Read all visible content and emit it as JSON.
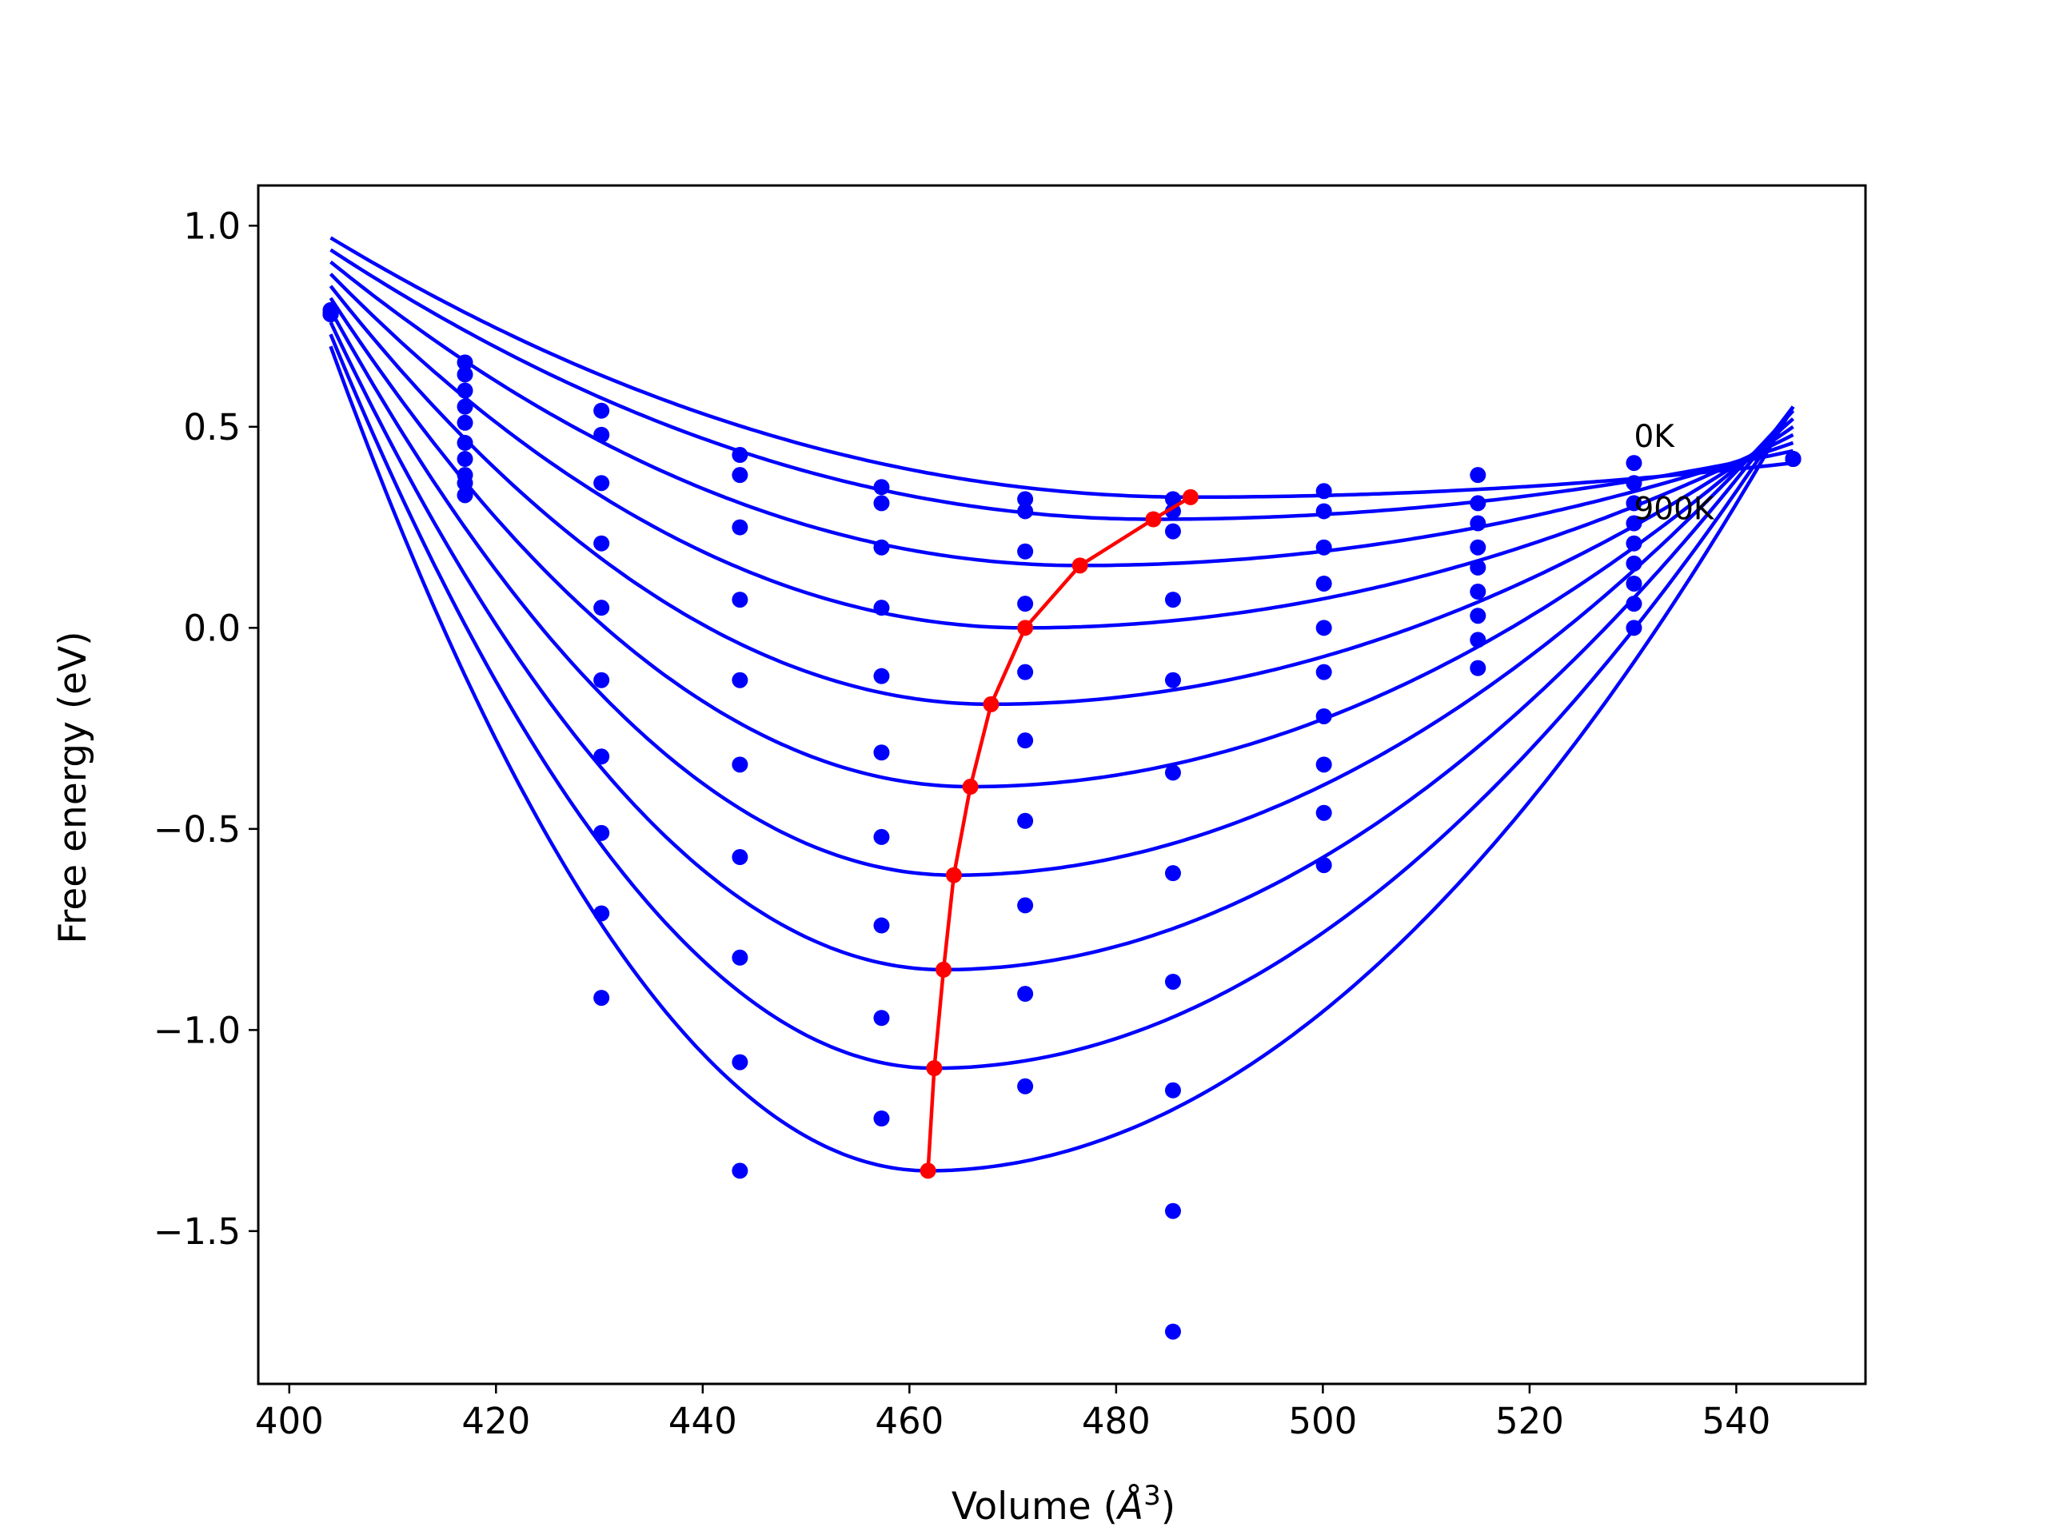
{
  "chart_data": {
    "type": "line",
    "title": "",
    "xlabel": "Volume (",
    "xlabel_symbol": "Å",
    "xlabel_exponent": "3",
    "xlabel_suffix": ")",
    "ylabel": "Free energy (eV)",
    "xlim": [
      397,
      552.5
    ],
    "ylim": [
      -1.88,
      1.1
    ],
    "xticks": [
      400,
      420,
      440,
      460,
      480,
      500,
      520,
      540
    ],
    "xtick_labels": [
      "400",
      "420",
      "440",
      "460",
      "480",
      "500",
      "520",
      "540"
    ],
    "yticks": [
      1.0,
      0.5,
      0.0,
      -0.5,
      -1.0,
      -1.5
    ],
    "ytick_labels": [
      "1.0",
      "0.5",
      "0.0",
      "−0.5",
      "−1.0",
      "−1.5"
    ],
    "grid": false,
    "curve_color": "#0000ff",
    "min_line_color": "#ff0000",
    "annotations": [
      {
        "text": "0K",
        "x": 530.1,
        "y": 0.45
      },
      {
        "text": "900K",
        "x": 530.1,
        "y": 0.27
      }
    ],
    "fit_x_range": [
      404.0,
      545.5
    ],
    "sample_volumes": [
      404.0,
      417.0,
      430.2,
      443.6,
      457.3,
      471.2,
      485.5,
      500.1,
      515.0,
      530.1,
      545.5
    ],
    "series": [
      {
        "min_x": 487.2,
        "min_y": 0.325,
        "left_y": 0.97,
        "right_y": 0.41,
        "points": [
          0.79,
          0.66,
          0.54,
          0.43,
          0.35,
          0.32,
          0.32,
          0.34,
          0.38,
          0.41,
          0.42
        ]
      },
      {
        "min_x": 483.6,
        "min_y": 0.27,
        "left_y": 0.94,
        "right_y": 0.44,
        "points": [
          0.78,
          0.63,
          0.48,
          0.38,
          0.31,
          0.29,
          0.29,
          0.29,
          0.31,
          0.36,
          0.42
        ]
      },
      {
        "min_x": 476.5,
        "min_y": 0.155,
        "left_y": 0.91,
        "right_y": 0.46,
        "points": [
          0.78,
          0.59,
          0.36,
          0.25,
          0.2,
          0.19,
          0.24,
          0.2,
          0.26,
          0.31,
          0.42
        ]
      },
      {
        "min_x": 471.2,
        "min_y": 0.0,
        "left_y": 0.88,
        "right_y": 0.48,
        "points": [
          0.78,
          0.55,
          0.21,
          0.07,
          0.05,
          0.06,
          0.07,
          0.11,
          0.2,
          0.26,
          0.42
        ]
      },
      {
        "min_x": 467.9,
        "min_y": -0.19,
        "left_y": 0.85,
        "right_y": 0.5,
        "points": [
          0.78,
          0.51,
          0.05,
          -0.13,
          -0.12,
          -0.11,
          -0.13,
          0.0,
          0.15,
          0.21,
          0.42
        ]
      },
      {
        "min_x": 465.9,
        "min_y": -0.395,
        "left_y": 0.82,
        "right_y": 0.52,
        "points": [
          0.78,
          0.46,
          -0.13,
          -0.34,
          -0.31,
          -0.28,
          -0.36,
          -0.11,
          0.09,
          0.16,
          0.42
        ]
      },
      {
        "min_x": 464.3,
        "min_y": -0.615,
        "left_y": 0.79,
        "right_y": 0.54,
        "points": [
          0.78,
          0.42,
          -0.32,
          -0.57,
          -0.52,
          -0.48,
          -0.61,
          -0.22,
          0.03,
          0.11,
          0.42
        ]
      },
      {
        "min_x": 463.3,
        "min_y": -0.85,
        "left_y": 0.76,
        "right_y": 0.55,
        "points": [
          0.78,
          0.38,
          -0.51,
          -0.82,
          -0.74,
          -0.69,
          -0.88,
          -0.34,
          -0.03,
          0.06,
          0.42
        ]
      },
      {
        "min_x": 462.4,
        "min_y": -1.095,
        "left_y": 0.73,
        "right_y": 0.55,
        "points": [
          0.78,
          0.36,
          -0.71,
          -1.08,
          -0.97,
          -0.91,
          -1.15,
          -0.46,
          -0.1,
          0.0,
          0.42
        ]
      },
      {
        "min_x": 461.8,
        "min_y": -1.35,
        "left_y": 0.7,
        "right_y": 0.55,
        "points": [
          0.78,
          0.33,
          -0.92,
          -1.35,
          -1.22,
          -1.14,
          -1.45,
          -0.59,
          null,
          null,
          0.42
        ]
      },
      {
        "points": [
          null,
          null,
          null,
          null,
          null,
          null,
          -1.75,
          null,
          null,
          null,
          null
        ]
      }
    ],
    "min_line": [
      {
        "x": 487.2,
        "y": 0.325
      },
      {
        "x": 483.6,
        "y": 0.27
      },
      {
        "x": 476.5,
        "y": 0.155
      },
      {
        "x": 471.2,
        "y": 0.0
      },
      {
        "x": 467.9,
        "y": -0.19
      },
      {
        "x": 465.9,
        "y": -0.395
      },
      {
        "x": 464.3,
        "y": -0.615
      },
      {
        "x": 463.3,
        "y": -0.85
      },
      {
        "x": 462.4,
        "y": -1.095
      },
      {
        "x": 461.8,
        "y": -1.35
      }
    ]
  }
}
